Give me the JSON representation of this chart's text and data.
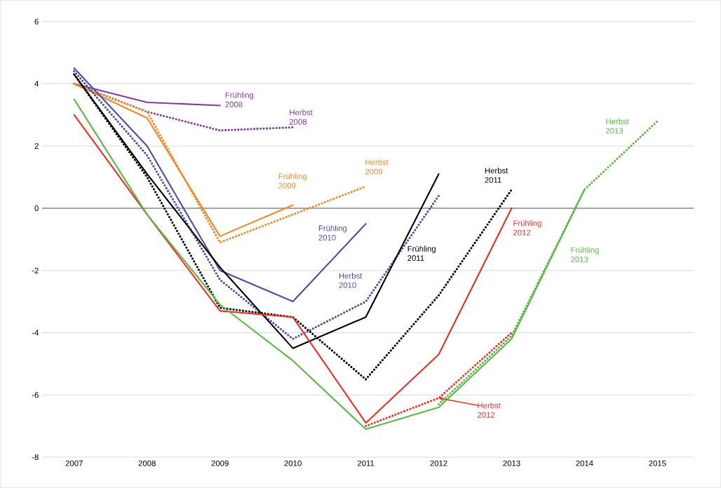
{
  "chart_data": {
    "type": "line",
    "categories": [
      "2007",
      "2008",
      "2009",
      "2010",
      "2011",
      "2012",
      "2013",
      "2014",
      "2015"
    ],
    "ylim": [
      -8,
      6
    ],
    "yticks": [
      -8,
      -6,
      -4,
      -2,
      0,
      2,
      4,
      6
    ],
    "grid": "y",
    "legend": false,
    "marker": "none",
    "ref_lines": [
      {
        "axis": "y",
        "value": 0,
        "color": "#8c8c8c"
      }
    ],
    "series": [
      {
        "name": "Frühling 2008",
        "color": "#7f3f98",
        "line_style": "solid",
        "values": [
          4.0,
          3.4,
          3.3,
          null,
          null,
          null,
          null,
          null,
          null
        ]
      },
      {
        "name": "Herbst 2008",
        "color": "#7f3f98",
        "line_style": "dotted",
        "values": [
          4.0,
          3.1,
          2.5,
          2.6,
          null,
          null,
          null,
          null,
          null
        ]
      },
      {
        "name": "Frühling 2009",
        "color": "#f0892a",
        "line_style": "solid",
        "values": [
          4.0,
          2.9,
          -0.9,
          0.1,
          null,
          null,
          null,
          null,
          null
        ]
      },
      {
        "name": "Herbst 2009",
        "color": "#f0892a",
        "line_style": "dotted",
        "values": [
          4.0,
          3.1,
          -1.1,
          -0.2,
          0.7,
          null,
          null,
          null,
          null
        ]
      },
      {
        "name": "Frühling 2010",
        "color": "#4a4fa6",
        "line_style": "solid",
        "values": [
          4.5,
          2.0,
          -2.0,
          -3.0,
          -0.5,
          null,
          null,
          null,
          null
        ]
      },
      {
        "name": "Herbst 2010",
        "color": "#4a4fa6",
        "line_style": "dotted",
        "values": [
          4.4,
          1.7,
          -2.3,
          -4.2,
          -3.0,
          0.4,
          null,
          null,
          null
        ]
      },
      {
        "name": "Frühling 2011",
        "color": "#000000",
        "line_style": "solid",
        "values": [
          4.3,
          1.1,
          -1.9,
          -4.5,
          -3.5,
          1.1,
          null,
          null,
          null
        ]
      },
      {
        "name": "Herbst 2011",
        "color": "#000000",
        "line_style": "dotted",
        "values": [
          4.3,
          1.0,
          -3.2,
          -3.5,
          -5.5,
          -2.8,
          0.6,
          null,
          null
        ]
      },
      {
        "name": "Frühling 2012",
        "color": "#e8322a",
        "line_style": "solid",
        "values": [
          3.0,
          -0.2,
          -3.3,
          -3.5,
          -6.9,
          -4.7,
          0.0,
          null,
          null
        ]
      },
      {
        "name": "Herbst 2012",
        "color": "#e8322a",
        "line_style": "dotted",
        "values": [
          null,
          null,
          null,
          null,
          -7.0,
          -6.1,
          -4.0,
          null,
          null
        ]
      },
      {
        "name": "Frühling 2013",
        "color": "#5cb847",
        "line_style": "solid",
        "values": [
          3.5,
          -0.2,
          -3.1,
          -4.9,
          -7.1,
          -6.4,
          -4.2,
          0.6,
          null
        ]
      },
      {
        "name": "Herbst 2013",
        "color": "#5cb847",
        "line_style": "dotted",
        "values": [
          null,
          null,
          null,
          null,
          null,
          -6.3,
          -4.1,
          0.6,
          2.8
        ]
      }
    ]
  }
}
